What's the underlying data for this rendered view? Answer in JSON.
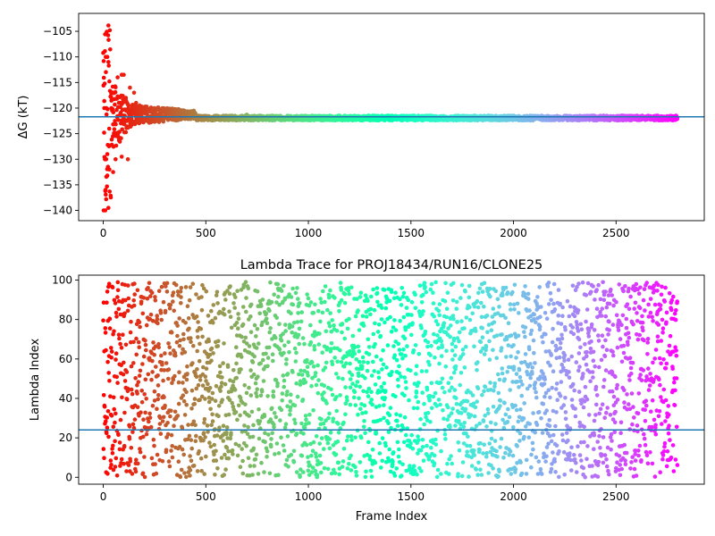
{
  "chart_data": [
    {
      "type": "scatter",
      "title": "",
      "xlabel": "",
      "ylabel": "ΔG (kT)",
      "xlim": [
        -120,
        2930
      ],
      "ylim": [
        -142,
        -101.5
      ],
      "xticks": [
        0,
        500,
        1000,
        1500,
        2000,
        2500
      ],
      "yticks": [
        -140,
        -135,
        -130,
        -125,
        -120,
        -115,
        -110,
        -105
      ],
      "x_tick_labels": [
        "0",
        "500",
        "1000",
        "1500",
        "2000",
        "2500"
      ],
      "y_tick_labels": [
        "−140",
        "−135",
        "−130",
        "−125",
        "−120",
        "−115",
        "−110",
        "−105"
      ],
      "colormap": "rainbow (red → violet along frame index)",
      "n_points": 2800,
      "hline": {
        "y": -121.7,
        "color": "#1f77b4"
      },
      "series": [
        {
          "values": [
            [
              2,
              -140
            ],
            [
              10,
              -140
            ],
            [
              25,
              -139.5
            ],
            [
              8,
              -130
            ],
            [
              14,
              -130
            ],
            [
              30,
              -132
            ],
            [
              48,
              -132.5
            ],
            [
              20,
              -129
            ],
            [
              60,
              -130
            ],
            [
              90,
              -129.5
            ],
            [
              120,
              -130
            ],
            [
              5,
              -120
            ],
            [
              15,
              -120
            ],
            [
              40,
              -120
            ],
            [
              12,
              -110
            ],
            [
              20,
              -110
            ],
            [
              25,
              -111
            ],
            [
              32,
              -104.8
            ],
            [
              55,
              -117
            ],
            [
              70,
              -114
            ],
            [
              90,
              -113.5
            ],
            [
              100,
              -113.5
            ],
            [
              110,
              -118
            ],
            [
              130,
              -116
            ],
            [
              150,
              -117
            ],
            [
              160,
              -119
            ],
            [
              180,
              -120
            ],
            [
              200,
              -121
            ],
            [
              250,
              -120.5
            ],
            [
              300,
              -121
            ],
            [
              400,
              -121.5
            ],
            [
              600,
              -121.5
            ],
            [
              700,
              -121.3
            ],
            [
              800,
              -121.8
            ],
            [
              1000,
              -122
            ],
            [
              1300,
              -122.2
            ],
            [
              1500,
              -122
            ],
            [
              1800,
              -122
            ],
            [
              2000,
              -122
            ],
            [
              2200,
              -122
            ],
            [
              2400,
              -121.8
            ],
            [
              2600,
              -121.8
            ],
            [
              2790,
              -121.8
            ]
          ]
        }
      ]
    },
    {
      "type": "scatter",
      "title": "Lambda Trace for PROJ18434/RUN16/CLONE25",
      "xlabel": "Frame Index",
      "ylabel": "Lambda Index",
      "xlim": [
        -120,
        2930
      ],
      "ylim": [
        -3.5,
        102.5
      ],
      "xticks": [
        0,
        500,
        1000,
        1500,
        2000,
        2500
      ],
      "yticks": [
        0,
        20,
        40,
        60,
        80,
        100
      ],
      "x_tick_labels": [
        "0",
        "500",
        "1000",
        "1500",
        "2000",
        "2500"
      ],
      "y_tick_labels": [
        "0",
        "20",
        "40",
        "60",
        "80",
        "100"
      ],
      "colormap": "rainbow (red → violet along frame index)",
      "n_points": 2800,
      "value_range": [
        0,
        99
      ],
      "hline": {
        "y": 24,
        "color": "#1f77b4"
      }
    }
  ]
}
